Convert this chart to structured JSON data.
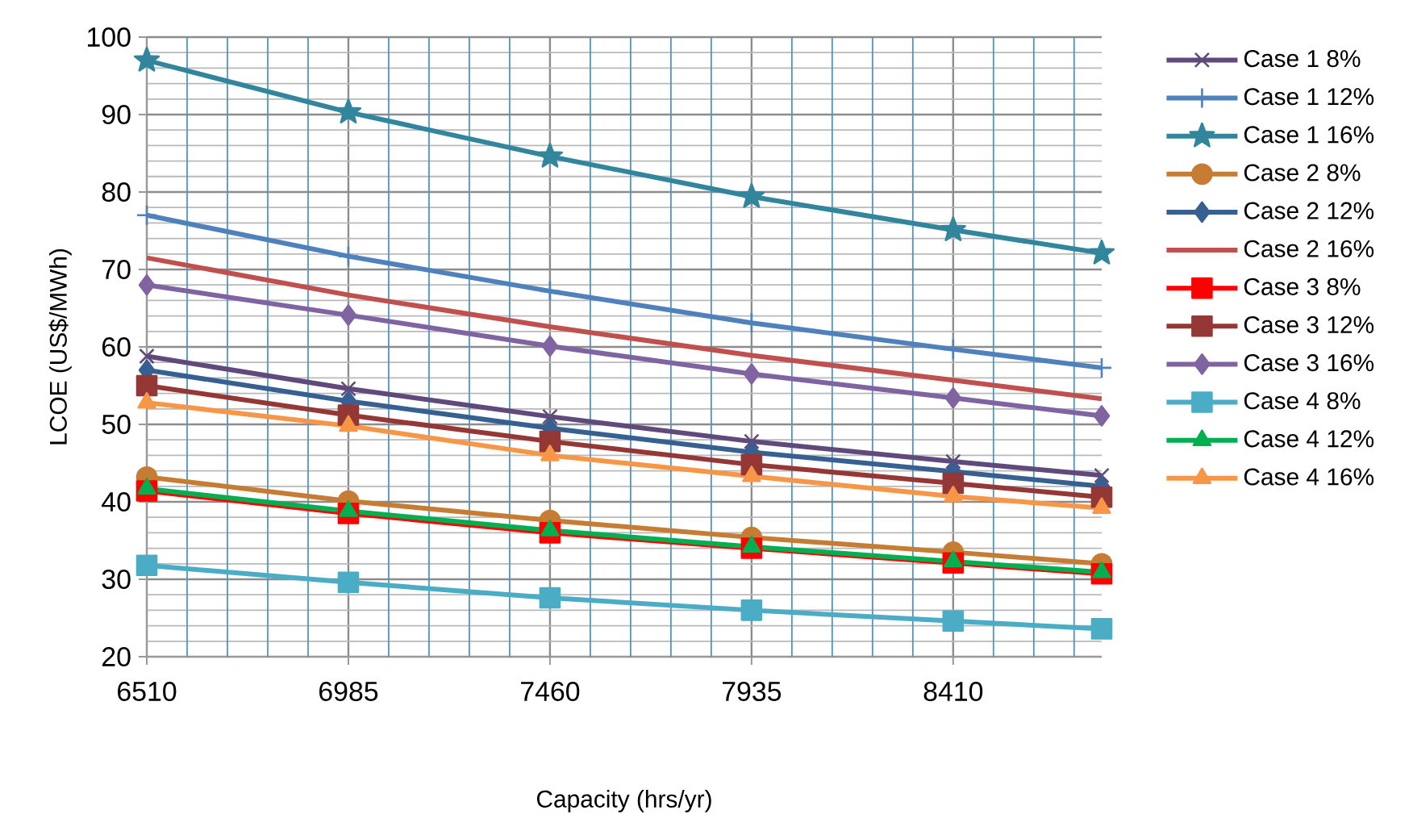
{
  "chart_data": {
    "type": "line",
    "xlabel": "Capacity (hrs/yr)",
    "ylabel": "LCOE (US$/MWh)",
    "x": [
      6510,
      6985,
      7460,
      7935,
      8410,
      8760
    ],
    "xlim": [
      6510,
      8760
    ],
    "xticks": [
      6510,
      {
        "value": 6605,
        "label": null
      },
      {
        "value": 6700,
        "label": null
      },
      {
        "value": 6795,
        "label": null
      },
      {
        "value": 6890,
        "label": null
      },
      6985,
      {
        "value": 7080,
        "label": null
      },
      {
        "value": 7175,
        "label": null
      },
      {
        "value": 7270,
        "label": null
      },
      {
        "value": 7365,
        "label": null
      },
      7460,
      {
        "value": 7555,
        "label": null
      },
      {
        "value": 7650,
        "label": null
      },
      {
        "value": 7745,
        "label": null
      },
      {
        "value": 7840,
        "label": null
      },
      7935,
      {
        "value": 8030,
        "label": null
      },
      {
        "value": 8125,
        "label": null
      },
      {
        "value": 8220,
        "label": null
      },
      {
        "value": 8315,
        "label": null
      },
      8410,
      {
        "value": 8505,
        "label": null
      },
      {
        "value": 8600,
        "label": null
      },
      {
        "value": 8695,
        "label": null
      }
    ],
    "ylim": [
      20,
      100
    ],
    "yticks": [
      20,
      30,
      40,
      50,
      60,
      70,
      80,
      90,
      100
    ],
    "grid": true,
    "legend": "right",
    "series": [
      {
        "name": "Case 1 8%",
        "color": "#604a7b",
        "marker": "cross",
        "values": [
          58.8,
          54.6,
          51.0,
          47.8,
          45.2,
          43.4
        ]
      },
      {
        "name": "Case 1 12%",
        "color": "#4f81bd",
        "marker": "plus",
        "values": [
          77.0,
          71.7,
          67.2,
          63.1,
          59.7,
          57.3
        ]
      },
      {
        "name": "Case 1 16%",
        "color": "#31859c",
        "marker": "star",
        "values": [
          97.0,
          90.3,
          84.6,
          79.4,
          75.1,
          72.1
        ]
      },
      {
        "name": "Case 2 8%",
        "color": "#c77c33",
        "marker": "circle",
        "values": [
          43.2,
          40.1,
          37.6,
          35.4,
          33.5,
          32.0
        ]
      },
      {
        "name": "Case 2 12%",
        "color": "#376092",
        "marker": "diamond",
        "values": [
          57.0,
          53.0,
          49.5,
          46.4,
          43.9,
          42.0
        ]
      },
      {
        "name": "Case 2 16%",
        "color": "#c0504d",
        "marker": "none",
        "values": [
          71.5,
          66.7,
          62.6,
          58.9,
          55.7,
          53.3
        ]
      },
      {
        "name": "Case 3 8%",
        "color": "#ff0000",
        "marker": "square",
        "values": [
          41.4,
          38.5,
          36.0,
          34.0,
          32.1,
          30.7
        ]
      },
      {
        "name": "Case 3 12%",
        "color": "#953735",
        "marker": "square",
        "values": [
          55.0,
          51.2,
          47.8,
          44.8,
          42.4,
          40.6
        ]
      },
      {
        "name": "Case 3 16%",
        "color": "#8064a2",
        "marker": "diamond",
        "values": [
          68.0,
          64.1,
          60.1,
          56.5,
          53.4,
          51.1
        ]
      },
      {
        "name": "Case 4 8%",
        "color": "#4bacc6",
        "marker": "square",
        "values": [
          31.8,
          29.6,
          27.6,
          26.0,
          24.6,
          23.6
        ]
      },
      {
        "name": "Case 4 12%",
        "color": "#00b050",
        "marker": "triangle",
        "values": [
          41.7,
          38.8,
          36.3,
          34.2,
          32.3,
          30.9
        ]
      },
      {
        "name": "Case 4 16%",
        "color": "#f79646",
        "marker": "triangle",
        "values": [
          52.8,
          49.8,
          46.0,
          43.3,
          40.7,
          39.2
        ]
      }
    ]
  }
}
